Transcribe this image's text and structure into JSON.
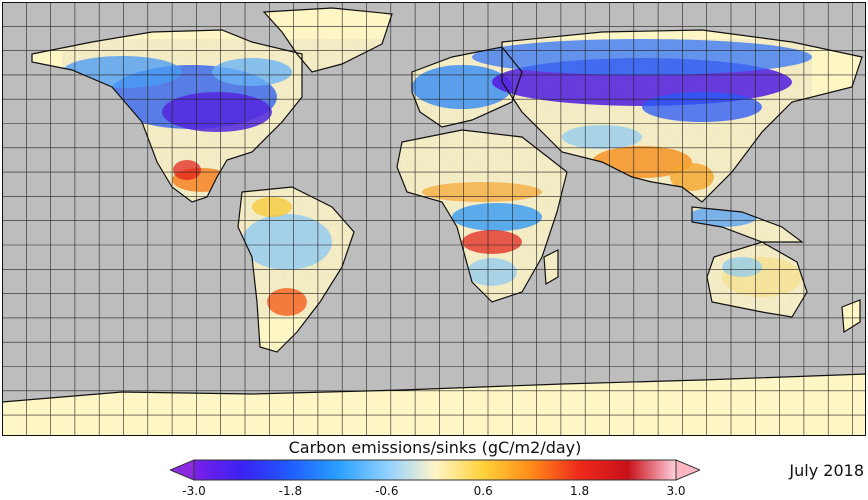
{
  "colorbar": {
    "title": "Carbon emissions/sinks (gC/m2/day)",
    "min": -3.0,
    "max": 3.0,
    "ticks": [
      "-3.0",
      "-1.8",
      "-0.6",
      "0.6",
      "1.8",
      "3.0"
    ],
    "tick_values": [
      -3.0,
      -1.8,
      -0.6,
      0.6,
      1.8,
      3.0
    ],
    "under_color": "#8a2be2",
    "over_color": "#ffb6c1",
    "stops": [
      {
        "value": -3.0,
        "color": "#7a1fe8"
      },
      {
        "value": -2.4,
        "color": "#3a22f5"
      },
      {
        "value": -1.8,
        "color": "#1f5cff"
      },
      {
        "value": -1.2,
        "color": "#2aa0ff"
      },
      {
        "value": -0.6,
        "color": "#8fd0ff"
      },
      {
        "value": 0.0,
        "color": "#fff5c8"
      },
      {
        "value": 0.6,
        "color": "#ffd23a"
      },
      {
        "value": 1.2,
        "color": "#ff8a1a"
      },
      {
        "value": 1.8,
        "color": "#ee2a1a"
      },
      {
        "value": 2.4,
        "color": "#c8101a"
      },
      {
        "value": 3.0,
        "color": "#ffd0dc"
      }
    ]
  },
  "date": "July 2018",
  "map": {
    "ocean_color": "#bdbdbd",
    "land_color": "#fff6c6",
    "grid_color": "#222222",
    "grid_lines": "on"
  }
}
